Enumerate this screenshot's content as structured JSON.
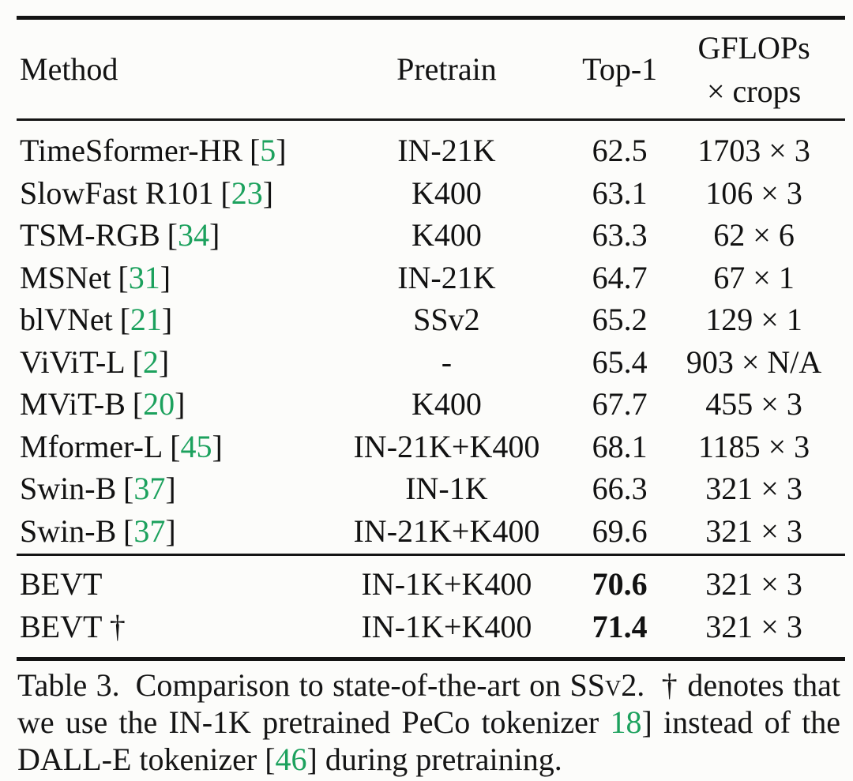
{
  "page": {
    "background_color": "#fcfcfa",
    "text_color": "#121212",
    "citation_color": "#1ca15d"
  },
  "table": {
    "citation_brackets": [
      "[",
      "]"
    ],
    "header": {
      "method": "Method",
      "pretrain": "Pretrain",
      "top1": "Top-1",
      "gflops_line1": "GFLOPs",
      "gflops_line2": "× crops"
    },
    "rows": [
      {
        "method": "TimeSformer-HR",
        "cite": "5",
        "pretrain": "IN-21K",
        "top1": "62.5",
        "top1_bold": false,
        "flops": "1703 × 3"
      },
      {
        "method": "SlowFast R101",
        "cite": "23",
        "pretrain": "K400",
        "top1": "63.1",
        "top1_bold": false,
        "flops": "106 × 3"
      },
      {
        "method": "TSM-RGB",
        "cite": "34",
        "pretrain": "K400",
        "top1": "63.3",
        "top1_bold": false,
        "flops": "62 × 6"
      },
      {
        "method": "MSNet",
        "cite": "31",
        "pretrain": "IN-21K",
        "top1": "64.7",
        "top1_bold": false,
        "flops": "67 × 1"
      },
      {
        "method": "blVNet",
        "cite": "21",
        "pretrain": "SSv2",
        "top1": "65.2",
        "top1_bold": false,
        "flops": "129 × 1"
      },
      {
        "method": "ViViT-L",
        "cite": "2",
        "pretrain": "-",
        "top1": "65.4",
        "top1_bold": false,
        "flops": "903 × N/A"
      },
      {
        "method": "MViT-B",
        "cite": "20",
        "pretrain": "K400",
        "top1": "67.7",
        "top1_bold": false,
        "flops": "455 × 3"
      },
      {
        "method": "Mformer-L",
        "cite": "45",
        "pretrain": "IN-21K+K400",
        "top1": "68.1",
        "top1_bold": false,
        "flops": "1185 × 3"
      },
      {
        "method": "Swin-B",
        "cite": "37",
        "pretrain": "IN-1K",
        "top1": "66.3",
        "top1_bold": false,
        "flops": "321 × 3"
      },
      {
        "method": "Swin-B",
        "cite": "37",
        "pretrain": "IN-21K+K400",
        "top1": "69.6",
        "top1_bold": false,
        "flops": "321 × 3"
      }
    ],
    "highlight_rows": [
      {
        "method": "BEVT",
        "cite": null,
        "pretrain": "IN-1K+K400",
        "top1": "70.6",
        "top1_bold": true,
        "flops": "321 × 3"
      },
      {
        "method": "BEVT †",
        "cite": null,
        "pretrain": "IN-1K+K400",
        "top1": "71.4",
        "top1_bold": true,
        "flops": "321 × 3"
      }
    ]
  },
  "caption": {
    "segments": [
      {
        "text": "Table 3. Comparison to state-of-the-art on ",
        "style": "plain"
      },
      {
        "text": "SSv2",
        "style": "smallcaps"
      },
      {
        "text": ". † denotes that we use the IN-1K pretrained PeCo tokenizer ",
        "style": "plain"
      },
      {
        "text": "18",
        "style": "cite"
      },
      {
        "text": "] instead of the DALL-E tokenizer [",
        "style": "plain",
        "prepend_bracket": true
      },
      {
        "text": "46",
        "style": "cite"
      },
      {
        "text": "] during pretraining.",
        "style": "plain"
      }
    ],
    "open_bracket": "["
  }
}
